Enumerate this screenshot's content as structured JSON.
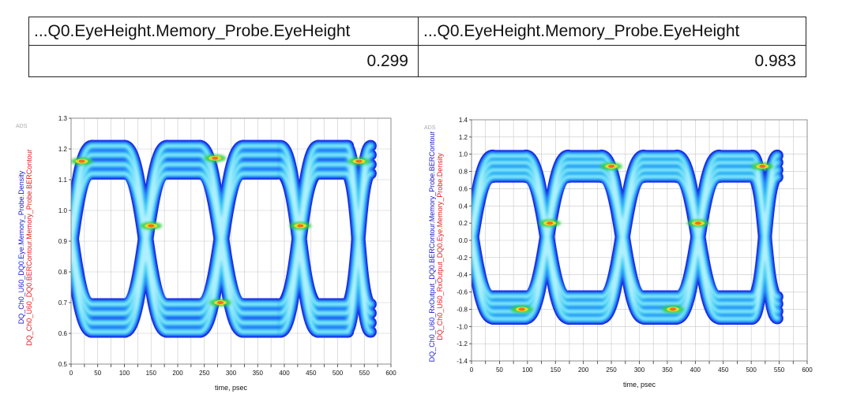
{
  "table": {
    "headers": [
      "...Q0.EyeHeight.Memory_Probe.EyeHeight",
      "...Q0.EyeHeight.Memory_Probe.EyeHeight"
    ],
    "values": [
      "0.299",
      "0.983"
    ]
  },
  "colors": {
    "outer": "#1010d8",
    "mid": "#2a7fff",
    "inner": "#30c8f0",
    "core": "#aef0ff",
    "hot_green": "#30d040",
    "hot_yellow": "#f0e020",
    "hot_orange": "#f07020",
    "ylabel_blue": "#1a1ad0",
    "ylabel_red": "#e02020"
  },
  "chart_data": [
    {
      "type": "heatmap",
      "watermark": "ADS",
      "xlabel": "time, psec",
      "ylabel_lines": [
        "DQ_Ch0_U60_DQ0.Eye.Memory_Probe.Density",
        "DQ_Ch0_U60_DQ0.BERContour.Memory_Probe.BERContour"
      ],
      "xlim": [
        0,
        600
      ],
      "ylim": [
        0.5,
        1.3
      ],
      "xticks": [
        "0",
        "25",
        "50",
        "75",
        "100",
        "125",
        "150",
        "175",
        "200",
        "225",
        "250",
        "275",
        "300",
        "325",
        "350",
        "375",
        "400",
        "425",
        "450",
        "475",
        "500",
        "525",
        "550",
        "575",
        "600"
      ],
      "xtick_labels_shown": [
        "0",
        "50",
        "100",
        "150",
        "200",
        "250",
        "300",
        "350",
        "400",
        "450",
        "500",
        "550",
        "600"
      ],
      "yticks": [
        "0.5",
        "0.6",
        "0.7",
        "0.8",
        "0.9",
        "1.0",
        "1.1",
        "1.2",
        "1.3"
      ],
      "grid": true,
      "eye": {
        "data_x_start": 0,
        "data_x_end": 555,
        "crossings_x": [
          0,
          140,
          282,
          428,
          555
        ],
        "crossing_y": [
          0.95,
          0.95,
          0.7,
          0.95,
          0.95
        ],
        "high_level": 1.165,
        "low_level": 0.65,
        "high_spread": 0.09,
        "low_spread": 0.09,
        "eye_opening_top": 1.11,
        "eye_opening_bottom": 0.71,
        "hotspots": [
          [
            270,
            1.17
          ],
          [
            540,
            1.16
          ],
          [
            150,
            0.95
          ],
          [
            430,
            0.95
          ],
          [
            20,
            1.16
          ],
          [
            280,
            0.7
          ]
        ]
      }
    },
    {
      "type": "heatmap",
      "watermark": "ADS",
      "xlabel": "time, psec",
      "ylabel_lines": [
        "DQ_Ch0_U60_RxOutput_DQ0.BERContour.Memory_Probe.BERContour",
        "DQ_Ch0_U60_RxOutput_DQ0.Eye.Memory_Probe.Density"
      ],
      "xlim": [
        0,
        600
      ],
      "ylim": [
        -1.4,
        1.4
      ],
      "xticks": [
        "0",
        "25",
        "50",
        "75",
        "100",
        "125",
        "150",
        "175",
        "200",
        "225",
        "250",
        "275",
        "300",
        "325",
        "350",
        "375",
        "400",
        "425",
        "450",
        "475",
        "500",
        "525",
        "550",
        "575",
        "600"
      ],
      "xtick_labels_shown": [
        "0",
        "50",
        "100",
        "150",
        "200",
        "250",
        "300",
        "350",
        "400",
        "450",
        "500",
        "550",
        "600"
      ],
      "yticks": [
        "-1.4",
        "-1.2",
        "-1.0",
        "-0.8",
        "-0.6",
        "-0.4",
        "-0.2",
        "0.0",
        "0.2",
        "0.4",
        "0.6",
        "0.8",
        "1.0",
        "1.2",
        "1.4"
      ],
      "grid": true,
      "eye": {
        "data_x_start": 0,
        "data_x_end": 555,
        "crossings_x": [
          0,
          135,
          270,
          405,
          540
        ],
        "crossing_y": [
          0.1,
          0.1,
          0.1,
          0.1,
          0.1
        ],
        "high_level": 0.86,
        "low_level": -0.78,
        "high_spread": 0.24,
        "low_spread": 0.26,
        "eye_opening_top": 0.65,
        "eye_opening_bottom": -0.5,
        "hotspots": [
          [
            250,
            0.86
          ],
          [
            520,
            0.86
          ],
          [
            140,
            0.2
          ],
          [
            405,
            0.2
          ],
          [
            90,
            -0.8
          ],
          [
            360,
            -0.8
          ]
        ]
      }
    }
  ]
}
